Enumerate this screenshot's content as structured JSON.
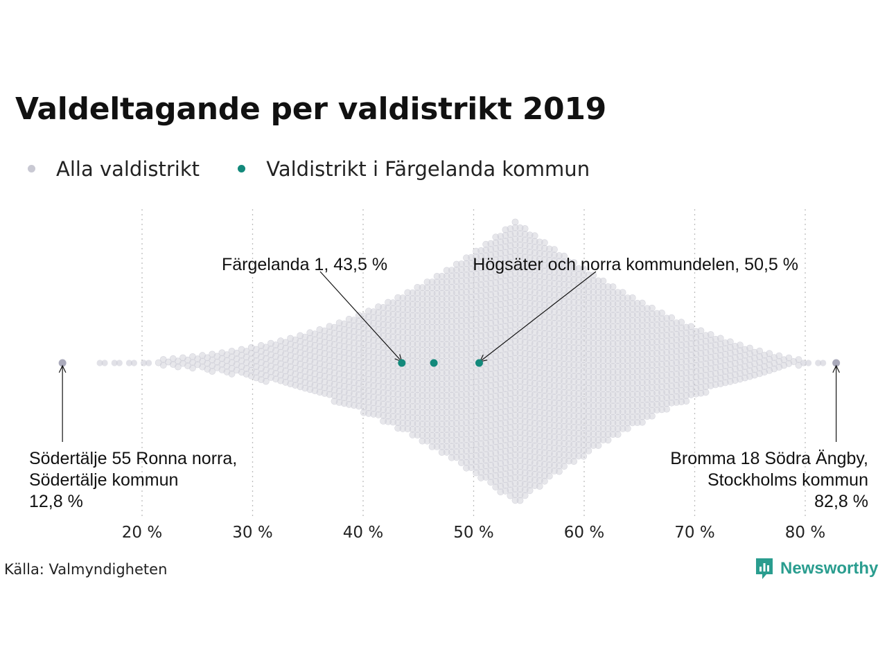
{
  "title": "Valdeltagande per valdistrikt 2019",
  "legend": {
    "all_label": "Alla valdistrikt",
    "highlight_label": "Valdistrikt i Färgelanda kommun"
  },
  "colors": {
    "all": "#c9c9d3",
    "outlier": "#aaaabb",
    "highlight": "#13897b",
    "brand": "#2a9d8f"
  },
  "source": "Källa: Valmyndigheten",
  "brand": "Newsworthy",
  "chart_data": {
    "type": "scatter",
    "subtype": "beeswarm",
    "xlim": [
      11,
      84
    ],
    "x_ticks": [
      20,
      30,
      40,
      50,
      60,
      70,
      80
    ],
    "x_tick_labels": [
      "20 %",
      "30 %",
      "40 %",
      "50 %",
      "60 %",
      "70 %",
      "80 %"
    ],
    "grid": "vertical dotted",
    "distribution_peak": 53.8,
    "series": [
      {
        "name": "Alla valdistrikt",
        "extremes": [
          12.8,
          82.8
        ]
      },
      {
        "name": "Valdistrikt i Färgelanda kommun",
        "values": [
          43.5,
          46.4,
          50.5
        ]
      }
    ],
    "annotations": [
      {
        "x": 43.5,
        "text": "Färgelanda 1, 43,5 %"
      },
      {
        "x": 50.5,
        "text": "Högsäter och norra kommundelen, 50,5 %"
      },
      {
        "x": 12.8,
        "lines": [
          "Södertälje 55 Ronna norra,",
          "Södertälje kommun",
          "12,8 %"
        ]
      },
      {
        "x": 82.8,
        "lines": [
          "Bromma 18 Södra Ängby,",
          "Stockholms kommun",
          "82,8 %"
        ]
      }
    ]
  }
}
